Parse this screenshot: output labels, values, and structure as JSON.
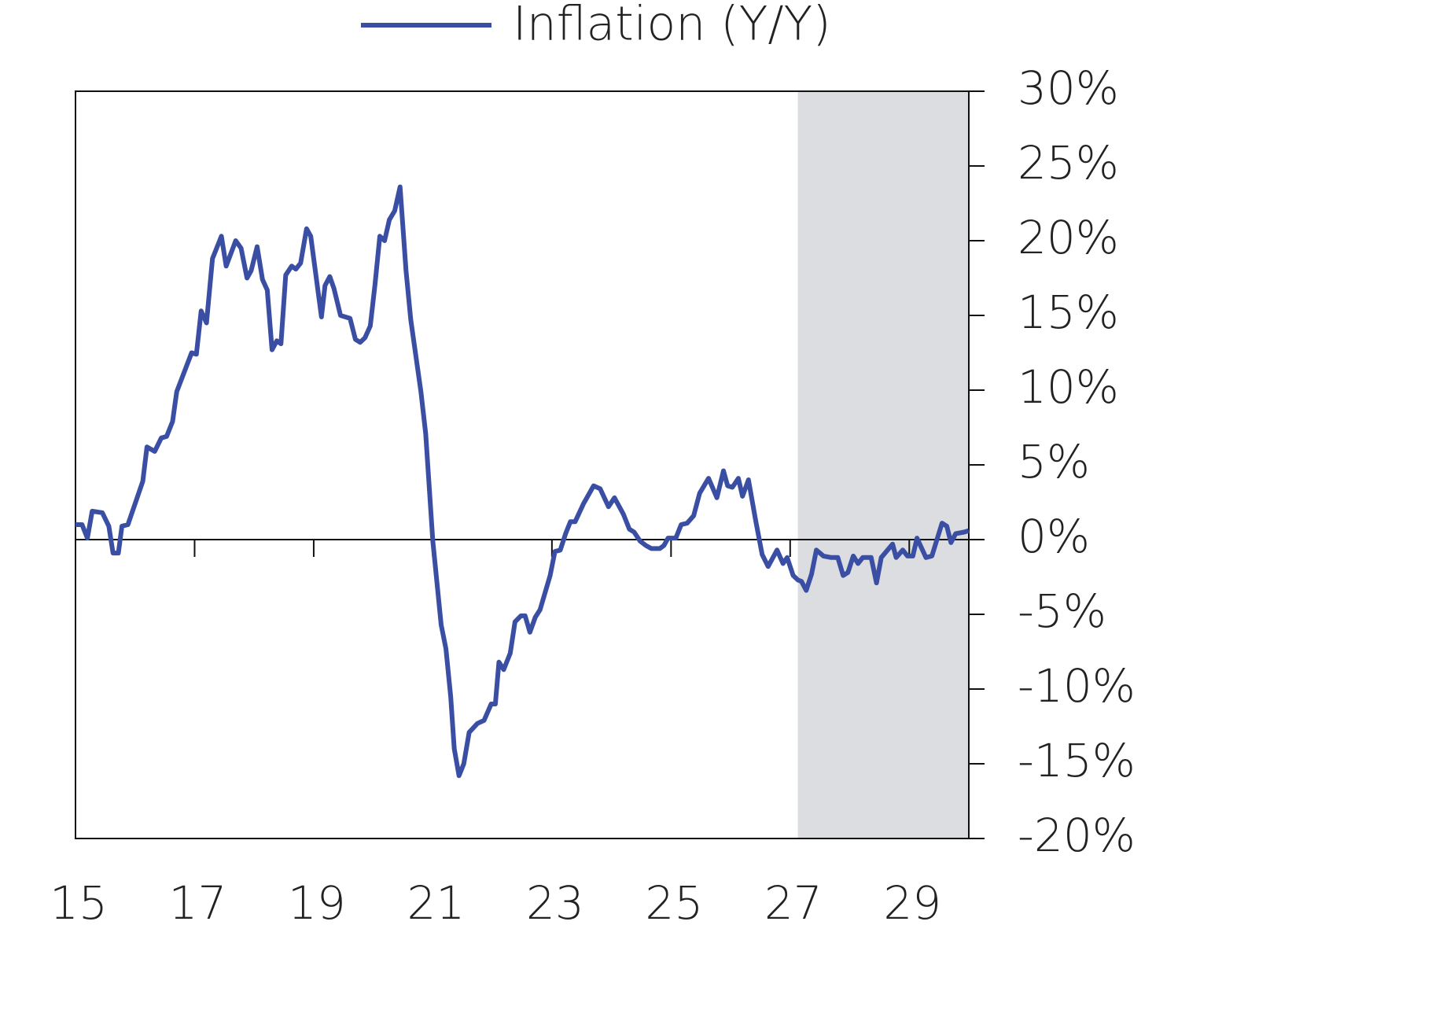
{
  "chart_data": {
    "type": "line",
    "series": [
      {
        "name": "Inflation (Y/Y)",
        "color": "#3a4fa3",
        "x": [
          15.0,
          15.11,
          15.2,
          15.28,
          15.45,
          15.56,
          15.63,
          15.72,
          15.78,
          15.88,
          16.13,
          16.2,
          16.33,
          16.44,
          16.53,
          16.63,
          16.7,
          16.95,
          17.03,
          17.11,
          17.2,
          17.3,
          17.45,
          17.53,
          17.69,
          17.78,
          17.88,
          17.95,
          18.05,
          18.14,
          18.22,
          18.3,
          18.38,
          18.45,
          18.53,
          18.63,
          18.7,
          18.78,
          18.88,
          18.95,
          19.13,
          19.19,
          19.27,
          19.34,
          19.45,
          19.61,
          19.7,
          19.78,
          19.86,
          19.95,
          20.03,
          20.11,
          20.19,
          20.27,
          20.36,
          20.45,
          20.55,
          20.63,
          20.8,
          20.88,
          21.0,
          21.14,
          21.22,
          21.3,
          21.36,
          21.44,
          21.52,
          21.61,
          21.75,
          21.86,
          21.98,
          22.05,
          22.11,
          22.19,
          22.3,
          22.38,
          22.48,
          22.55,
          22.63,
          22.72,
          22.8,
          22.97,
          23.05,
          23.14,
          23.23,
          23.31,
          23.39,
          23.53,
          23.7,
          23.81,
          23.95,
          24.05,
          24.2,
          24.3,
          24.38,
          24.48,
          24.58,
          24.67,
          24.81,
          24.88,
          24.95,
          25.08,
          25.17,
          25.27,
          25.38,
          25.48,
          25.63,
          25.77,
          25.88,
          25.95,
          26.03,
          26.13,
          26.2,
          26.3,
          26.42,
          26.53,
          26.63,
          26.78,
          26.88,
          26.95,
          27.05,
          27.13,
          27.19,
          27.27,
          27.36,
          27.44,
          27.56,
          27.69,
          27.8,
          27.89,
          27.97,
          28.06,
          28.14,
          28.22,
          28.36,
          28.45,
          28.53,
          28.72,
          28.78,
          28.89,
          28.97,
          29.06,
          29.13,
          29.28,
          29.38,
          29.55,
          29.63,
          29.7,
          29.78,
          29.92,
          30.0
        ],
        "values": [
          1.0,
          1.0,
          0.1,
          1.9,
          1.8,
          0.9,
          -0.9,
          -0.9,
          0.9,
          1.0,
          3.9,
          6.2,
          5.9,
          6.8,
          6.9,
          7.9,
          9.9,
          12.5,
          12.4,
          15.3,
          14.5,
          18.8,
          20.3,
          18.3,
          20.0,
          19.5,
          17.5,
          18.0,
          19.6,
          17.4,
          16.7,
          12.7,
          13.3,
          13.1,
          17.7,
          18.3,
          18.1,
          18.5,
          20.8,
          20.3,
          14.9,
          17.0,
          17.6,
          16.8,
          15.0,
          14.8,
          13.4,
          13.2,
          13.5,
          14.3,
          17.1,
          20.3,
          20.0,
          21.4,
          22.0,
          23.6,
          18.0,
          14.7,
          9.9,
          7.1,
          -0.1,
          -5.7,
          -7.3,
          -10.5,
          -14.0,
          -15.8,
          -15.0,
          -12.9,
          -12.3,
          -12.1,
          -11.0,
          -11.0,
          -8.2,
          -8.7,
          -7.6,
          -5.5,
          -5.1,
          -5.1,
          -6.2,
          -5.2,
          -4.7,
          -2.4,
          -0.8,
          -0.7,
          0.4,
          1.2,
          1.2,
          2.4,
          3.6,
          3.4,
          2.2,
          2.8,
          1.7,
          0.7,
          0.5,
          -0.1,
          -0.4,
          -0.6,
          -0.6,
          -0.4,
          0.1,
          0.1,
          1.0,
          1.1,
          1.6,
          3.1,
          4.1,
          2.8,
          4.6,
          3.6,
          3.5,
          4.1,
          2.9,
          4.0,
          1.3,
          -1.0,
          -1.8,
          -0.7,
          -1.6,
          -1.2,
          -2.4,
          -2.7,
          -2.8,
          -3.4,
          -2.3,
          -0.7,
          -1.1,
          -1.2,
          -1.2,
          -2.4,
          -2.2,
          -1.1,
          -1.6,
          -1.2,
          -1.2,
          -2.9,
          -1.2,
          -0.3,
          -1.2,
          -0.7,
          -1.1,
          -1.1,
          0.1,
          -1.2,
          -1.1,
          1.1,
          0.9,
          -0.2,
          0.4,
          0.5,
          0.6
        ]
      }
    ],
    "xlim": [
      15,
      30
    ],
    "xticks": [
      15,
      17,
      19,
      21,
      23,
      25,
      27,
      29
    ],
    "ylim": [
      -20,
      30
    ],
    "yticks": [
      {
        "value": 30,
        "label": "30%"
      },
      {
        "value": 25,
        "label": "25%"
      },
      {
        "value": 20,
        "label": "20%"
      },
      {
        "value": 15,
        "label": "15%"
      },
      {
        "value": 10,
        "label": "10%"
      },
      {
        "value": 5,
        "label": "5%"
      },
      {
        "value": 0,
        "label": "0%"
      },
      {
        "value": -5,
        "label": "-5%"
      },
      {
        "value": -10,
        "label": "-10%"
      },
      {
        "value": -15,
        "label": "-15%"
      },
      {
        "value": -20,
        "label": "-20%"
      }
    ],
    "y_axis_side": "right",
    "shaded_span": [
      27.13,
      30
    ],
    "shade_color": "#dcdde0",
    "legend": "top"
  }
}
